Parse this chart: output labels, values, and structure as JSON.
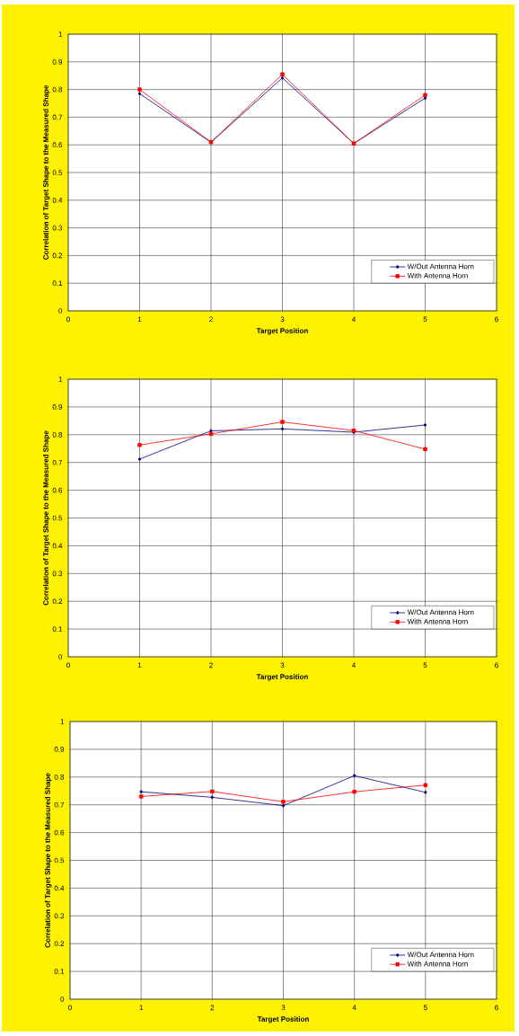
{
  "chart_data": [
    {
      "type": "line",
      "xlabel": "Target Position",
      "ylabel": "Correlation of Target Shape to the Measured Shape",
      "x": [
        1,
        2,
        3,
        4,
        5
      ],
      "xlim": [
        0,
        6
      ],
      "xticks": [
        0,
        1,
        2,
        3,
        4,
        5,
        6
      ],
      "ylim": [
        0,
        1
      ],
      "yticks": [
        0,
        0.1,
        0.2,
        0.3,
        0.4,
        0.5,
        0.6,
        0.7,
        0.8,
        0.9,
        1
      ],
      "grid": true,
      "legend": "bottom right",
      "series": [
        {
          "name": "W/Out Antenna Horn",
          "color": "#000080",
          "marker": "diamond",
          "values": [
            0.785,
            0.609,
            0.842,
            0.605,
            0.769
          ]
        },
        {
          "name": "With Antenna Horn",
          "color": "#ff0000",
          "marker": "square",
          "values": [
            0.8,
            0.61,
            0.855,
            0.605,
            0.78
          ]
        }
      ]
    },
    {
      "type": "line",
      "xlabel": "Target Position",
      "ylabel": "Correlation of Target Shape to the Measured Shape",
      "x": [
        1,
        2,
        3,
        4,
        5
      ],
      "xlim": [
        0,
        6
      ],
      "xticks": [
        0,
        1,
        2,
        3,
        4,
        5,
        6
      ],
      "ylim": [
        0,
        1
      ],
      "yticks": [
        0,
        0.1,
        0.2,
        0.3,
        0.4,
        0.5,
        0.6,
        0.7,
        0.8,
        0.9,
        1
      ],
      "grid": true,
      "legend": "bottom right",
      "series": [
        {
          "name": "W/Out Antenna Horn",
          "color": "#000080",
          "marker": "diamond",
          "values": [
            0.712,
            0.814,
            0.821,
            0.809,
            0.835
          ]
        },
        {
          "name": "With Antenna Horn",
          "color": "#ff0000",
          "marker": "square",
          "values": [
            0.763,
            0.803,
            0.846,
            0.815,
            0.748
          ]
        }
      ]
    },
    {
      "type": "line",
      "xlabel": "Target Position",
      "ylabel": "Correlation of Target Shape to the Measured Shape",
      "x": [
        1,
        2,
        3,
        4,
        5
      ],
      "xlim": [
        0,
        6
      ],
      "xticks": [
        0,
        1,
        2,
        3,
        4,
        5,
        6
      ],
      "ylim": [
        0,
        1
      ],
      "yticks": [
        0,
        0.1,
        0.2,
        0.3,
        0.4,
        0.5,
        0.6,
        0.7,
        0.8,
        0.9,
        1
      ],
      "grid": true,
      "legend": "bottom right",
      "series": [
        {
          "name": "W/Out Antenna Horn",
          "color": "#000080",
          "marker": "diamond",
          "values": [
            0.747,
            0.727,
            0.697,
            0.805,
            0.745
          ]
        },
        {
          "name": "With Antenna Horn",
          "color": "#ff0000",
          "marker": "square",
          "values": [
            0.73,
            0.748,
            0.711,
            0.747,
            0.771
          ]
        }
      ]
    }
  ]
}
